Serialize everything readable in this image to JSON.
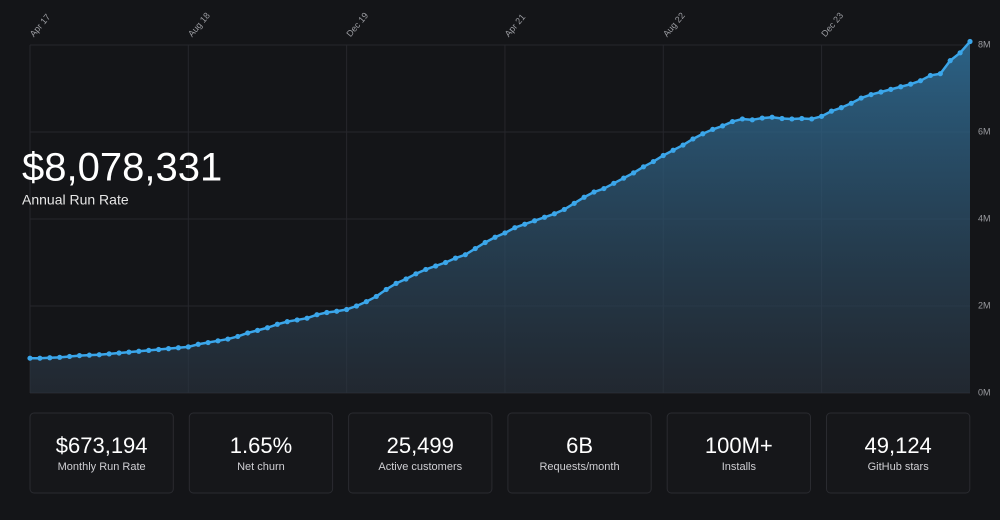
{
  "headline": {
    "value": "$8,078,331",
    "label": "Annual Run Rate"
  },
  "stats": [
    {
      "value": "$673,194",
      "label": "Monthly Run Rate"
    },
    {
      "value": "1.65%",
      "label": "Net churn"
    },
    {
      "value": "25,499",
      "label": "Active customers"
    },
    {
      "value": "6B",
      "label": "Requests/month"
    },
    {
      "value": "100M+",
      "label": "Installs"
    },
    {
      "value": "49,124",
      "label": "GitHub stars"
    }
  ],
  "chart_data": {
    "type": "line",
    "color": "#3ba6ea",
    "grid": true,
    "categories": [
      "Apr 17",
      null,
      null,
      null,
      null,
      null,
      null,
      null,
      null,
      null,
      null,
      null,
      null,
      null,
      null,
      null,
      "Aug 18",
      null,
      null,
      null,
      null,
      null,
      null,
      null,
      null,
      null,
      null,
      null,
      null,
      null,
      null,
      null,
      "Dec 19",
      null,
      null,
      null,
      null,
      null,
      null,
      null,
      null,
      null,
      null,
      null,
      null,
      null,
      null,
      null,
      "Apr 21",
      null,
      null,
      null,
      null,
      null,
      null,
      null,
      null,
      null,
      null,
      null,
      null,
      null,
      null,
      null,
      "Aug 22",
      null,
      null,
      null,
      null,
      null,
      null,
      null,
      null,
      null,
      null,
      null,
      null,
      null,
      null,
      null,
      "Dec 23",
      null,
      null,
      null,
      null,
      null,
      null,
      null,
      null,
      null,
      null,
      null,
      null,
      null,
      null,
      null
    ],
    "values": [
      800000,
      800000,
      810000,
      820000,
      840000,
      860000,
      870000,
      880000,
      900000,
      920000,
      940000,
      960000,
      980000,
      1000000,
      1020000,
      1040000,
      1060000,
      1120000,
      1160000,
      1200000,
      1240000,
      1300000,
      1380000,
      1440000,
      1500000,
      1580000,
      1640000,
      1680000,
      1720000,
      1800000,
      1850000,
      1880000,
      1920000,
      2000000,
      2100000,
      2220000,
      2380000,
      2520000,
      2620000,
      2740000,
      2840000,
      2920000,
      3000000,
      3100000,
      3180000,
      3320000,
      3460000,
      3580000,
      3680000,
      3800000,
      3880000,
      3960000,
      4040000,
      4120000,
      4220000,
      4360000,
      4500000,
      4620000,
      4700000,
      4820000,
      4940000,
      5060000,
      5200000,
      5320000,
      5460000,
      5580000,
      5700000,
      5840000,
      5960000,
      6060000,
      6140000,
      6240000,
      6300000,
      6280000,
      6320000,
      6340000,
      6310000,
      6300000,
      6310000,
      6300000,
      6360000,
      6480000,
      6560000,
      6660000,
      6780000,
      6860000,
      6920000,
      6980000,
      7040000,
      7100000,
      7180000,
      7300000,
      7340000,
      7640000,
      7820000,
      8080000
    ],
    "ylim": [
      0,
      8000000
    ],
    "yticks": [
      {
        "value": 0,
        "label": "0M"
      },
      {
        "value": 2000000,
        "label": "2M"
      },
      {
        "value": 4000000,
        "label": "4M"
      },
      {
        "value": 6000000,
        "label": "6M"
      },
      {
        "value": 8000000,
        "label": "8M"
      }
    ]
  }
}
